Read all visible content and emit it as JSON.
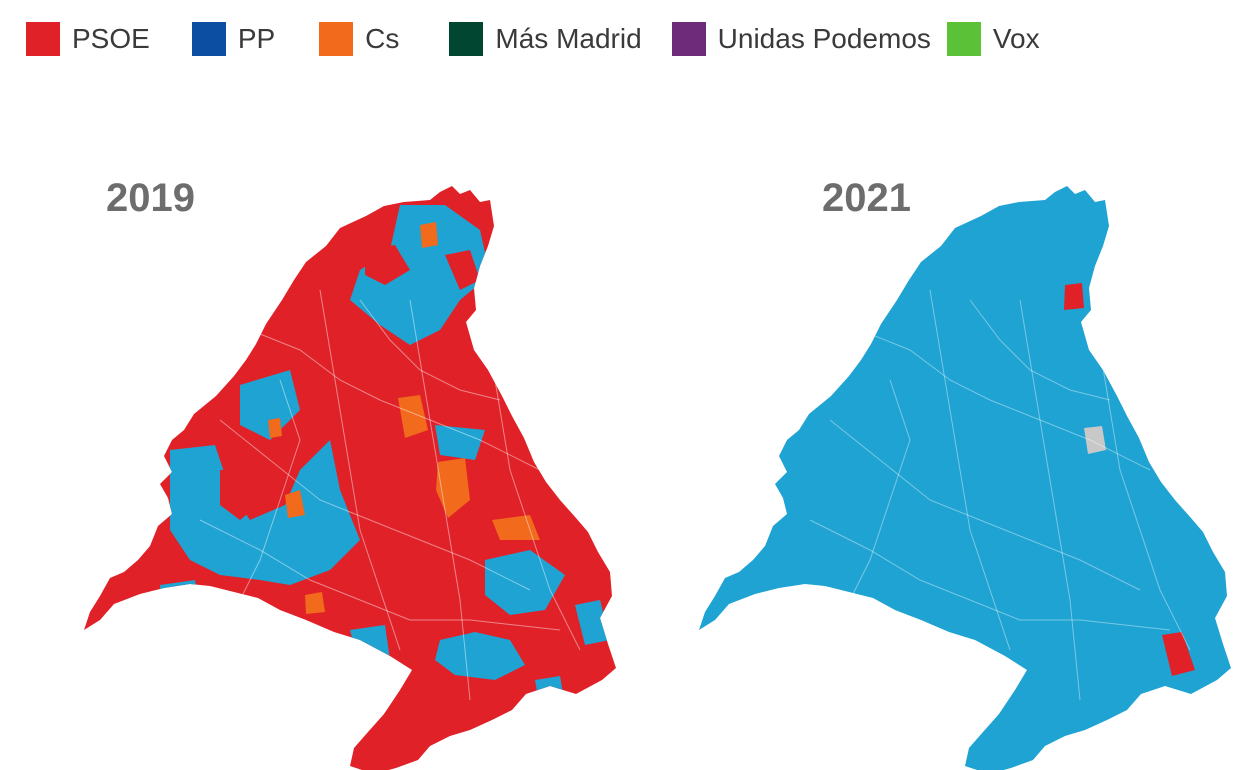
{
  "legend": {
    "items": [
      {
        "label": "PSOE",
        "color": "#e02128"
      },
      {
        "label": "PP",
        "color": "#0b4ea2"
      },
      {
        "label": "Cs",
        "color": "#f26a1b"
      },
      {
        "label": "Más Madrid",
        "color": "#004631"
      },
      {
        "label": "Unidas Podemos",
        "color": "#6d2b7a"
      },
      {
        "label": "Vox",
        "color": "#5bc136"
      }
    ]
  },
  "maps": [
    {
      "year": "2019",
      "winner_color": "#e02128",
      "secondary_color": "#1ea3d3",
      "accent_color": "#f26a1b"
    },
    {
      "year": "2021",
      "winner_color": "#1ea3d3",
      "secondary_color": "#e02128",
      "accent_color": "#c8c8c8"
    }
  ]
}
